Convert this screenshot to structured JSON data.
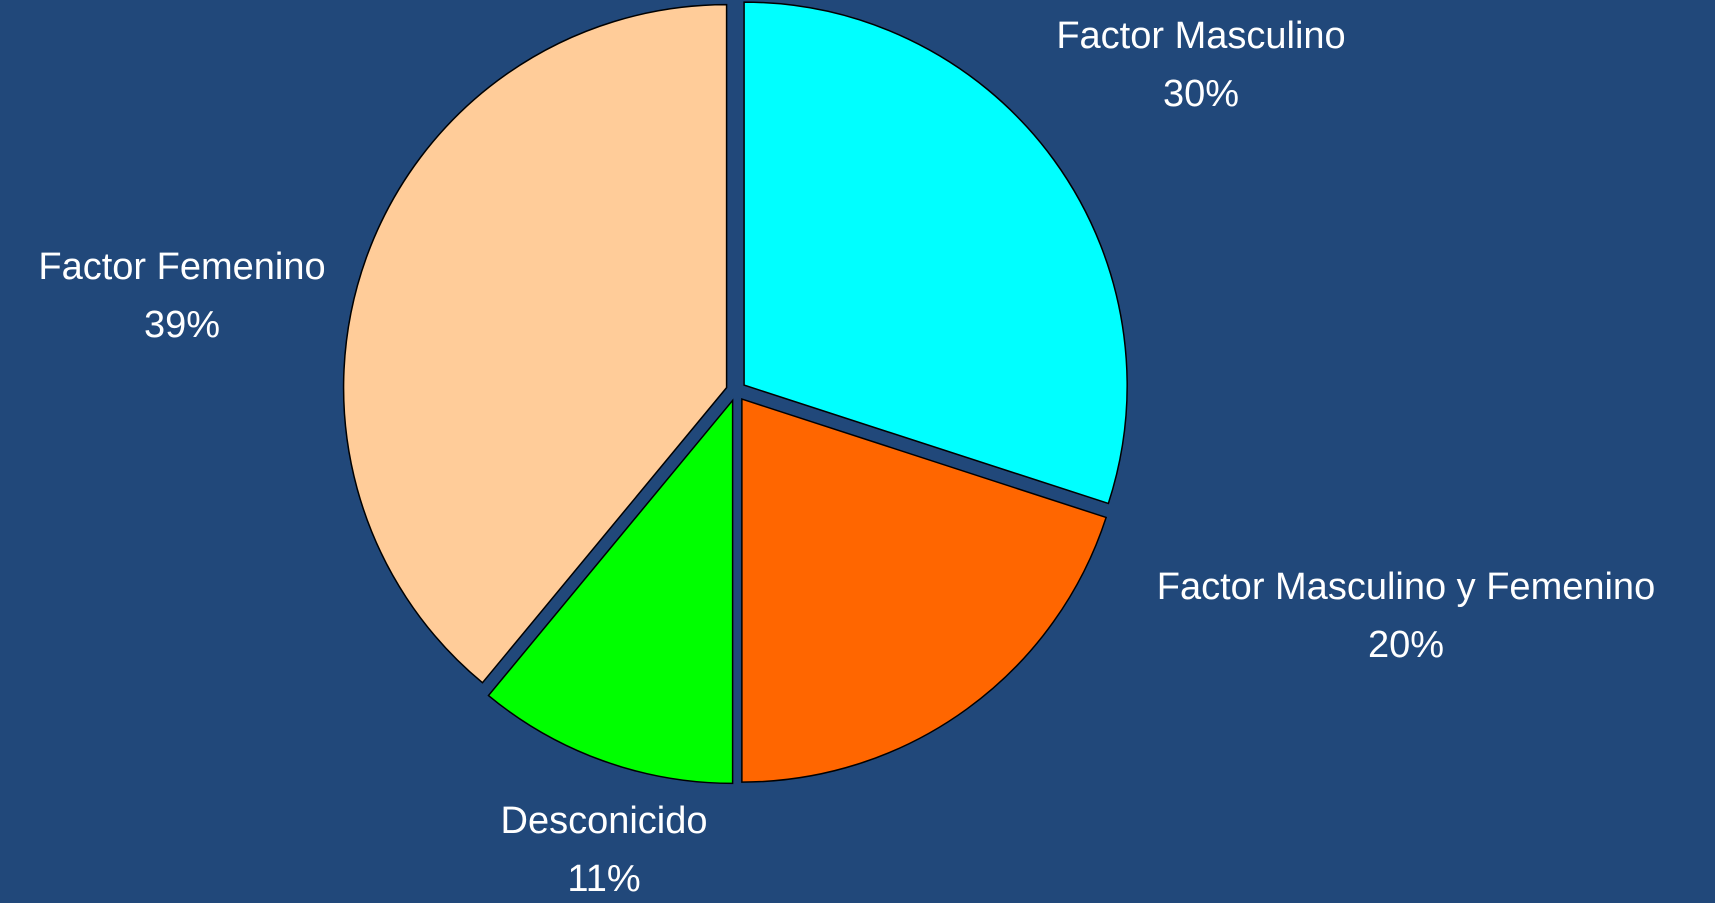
{
  "chart_data": {
    "type": "pie",
    "categories": [
      "Factor Masculino",
      "Factor Masculino y Femenino",
      "Desconicido",
      "Factor Femenino"
    ],
    "values": [
      30,
      20,
      11,
      39
    ],
    "value_labels": [
      "30%",
      "20%",
      "11%",
      "39%"
    ],
    "colors": [
      "#00ffff",
      "#ff6600",
      "#00ff00",
      "#ffcc99"
    ]
  }
}
